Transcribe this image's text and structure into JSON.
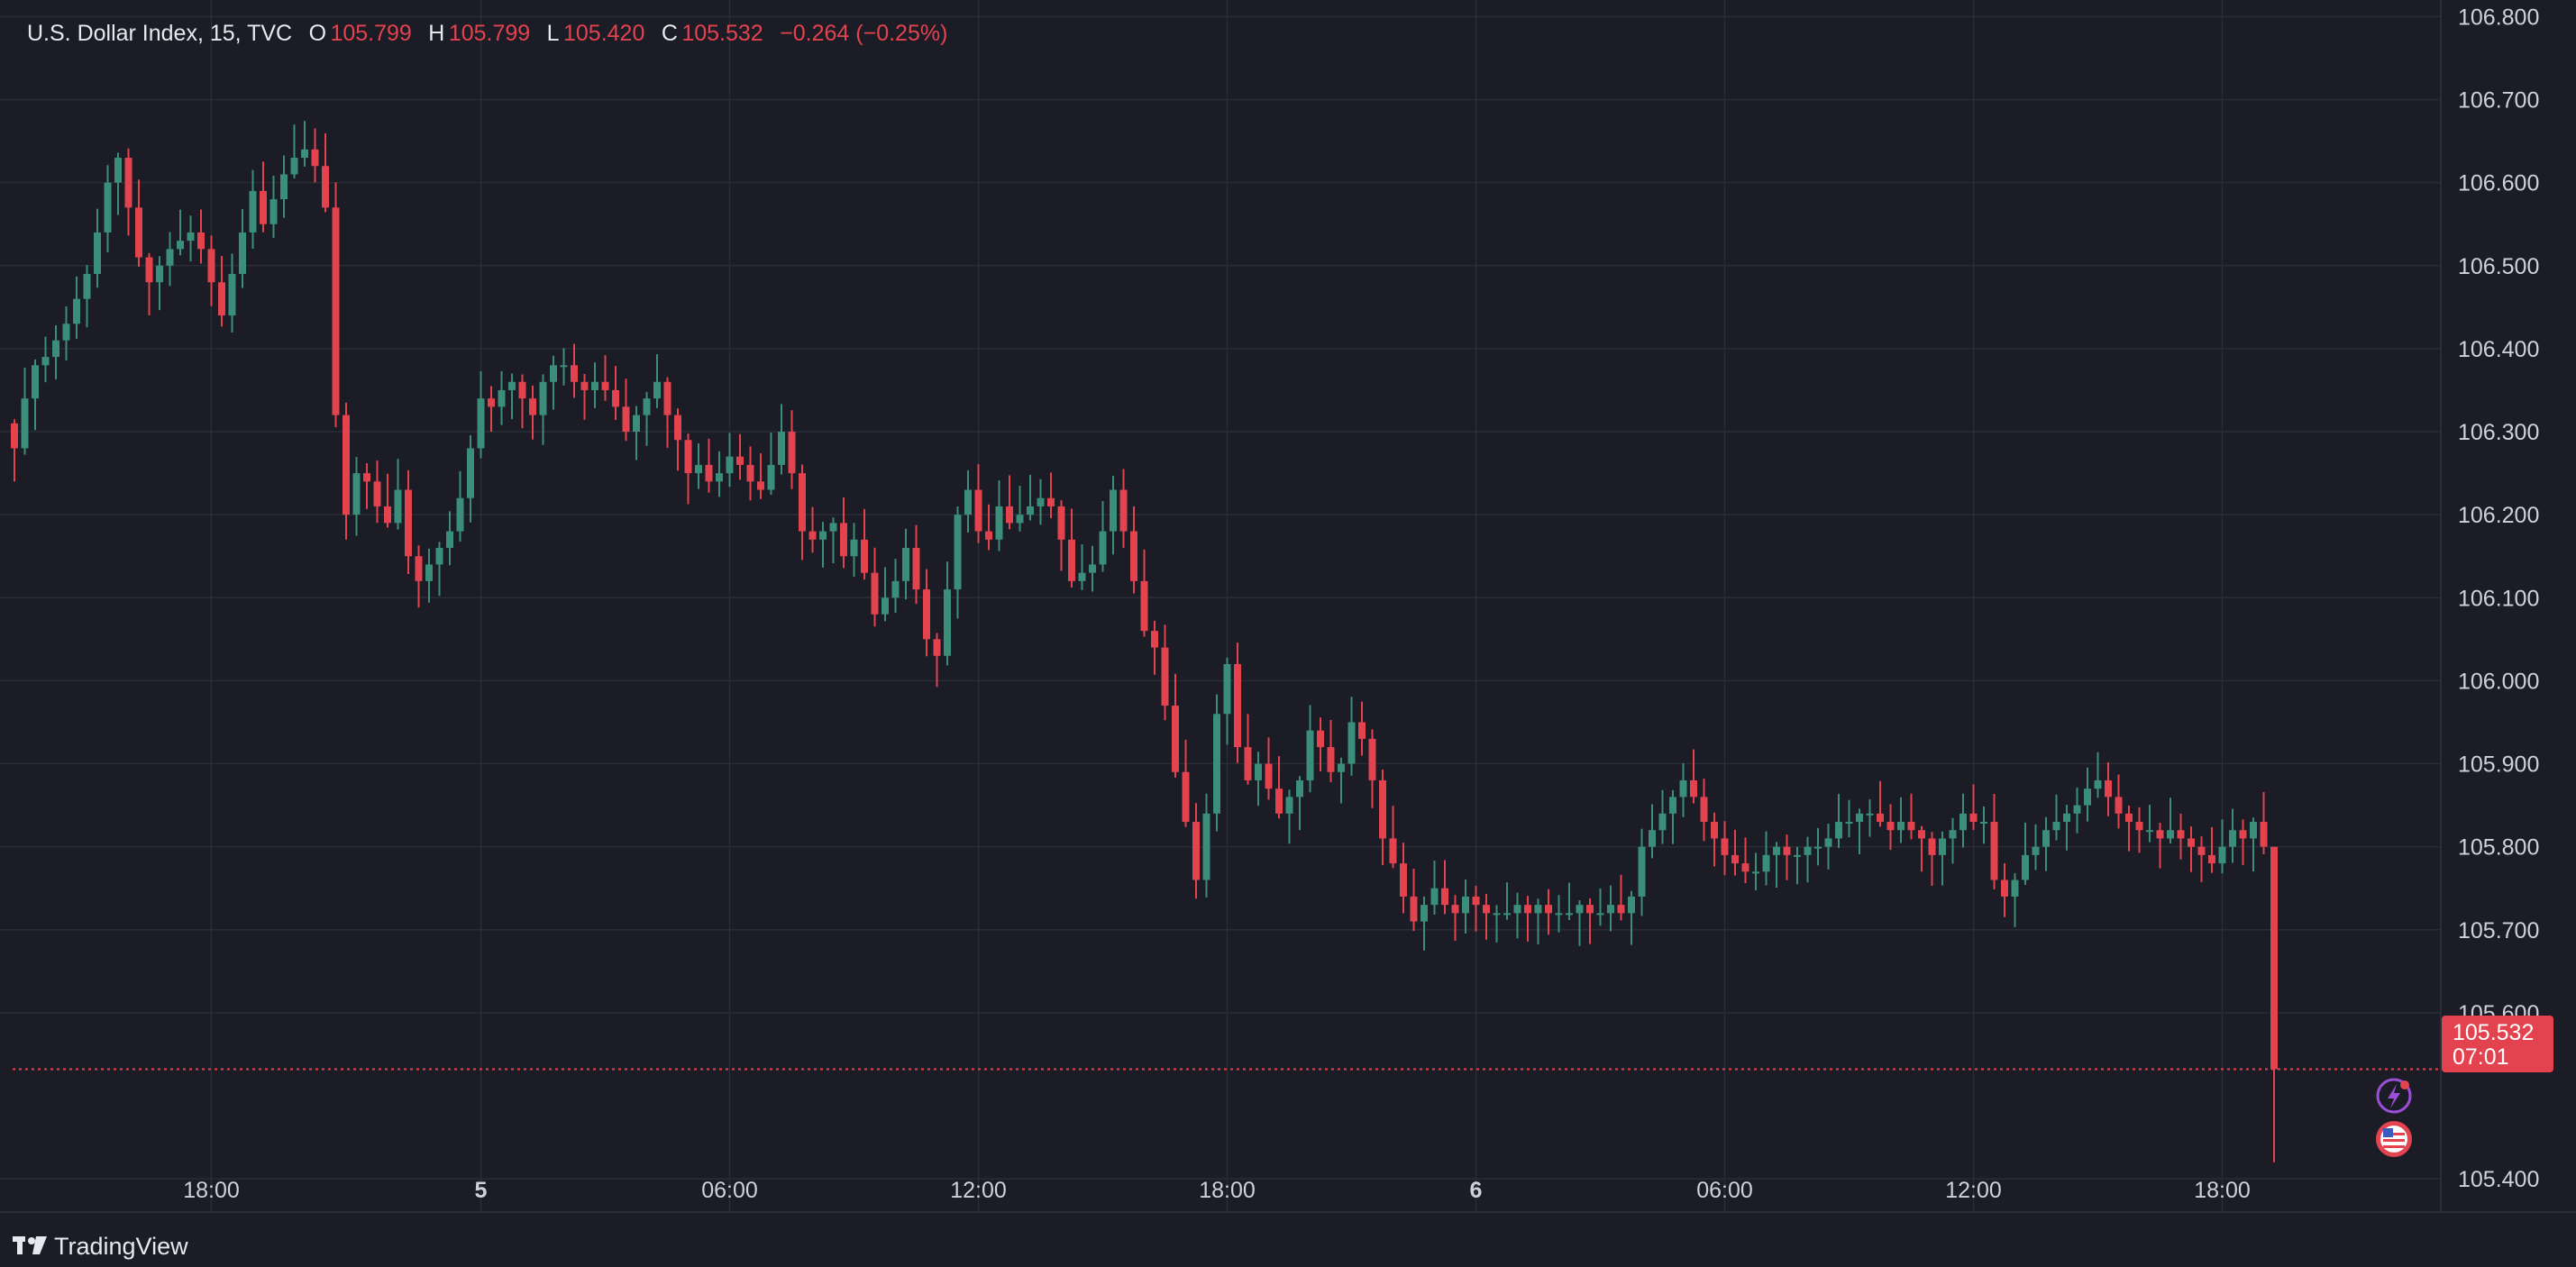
{
  "legend": {
    "symbol": "U.S. Dollar Index, 15, TVC",
    "open_label": "O",
    "open": "105.799",
    "high_label": "H",
    "high": "105.799",
    "low_label": "L",
    "low": "105.420",
    "close_label": "C",
    "close": "105.532",
    "change": "−0.264 (−0.25%)"
  },
  "last_price": {
    "value": "105.532",
    "countdown": "07:01"
  },
  "brand": "TradingView",
  "colors": {
    "background": "#1b1c25",
    "up": "#3b8f7a",
    "down": "#e2434f",
    "grid": "#2a2d36",
    "text": "#cfd2d9"
  },
  "icons": [
    "lightning-event-icon",
    "us-flag-event-icon",
    "tradingview-logo-icon"
  ],
  "chart_data": {
    "type": "candlestick",
    "ylim": [
      105.36,
      106.82
    ],
    "y_ticks": [
      "106.800",
      "106.700",
      "106.600",
      "106.500",
      "106.400",
      "106.300",
      "106.200",
      "106.100",
      "106.000",
      "105.900",
      "105.800",
      "105.700",
      "105.600",
      "105.400"
    ],
    "x_ticks": [
      {
        "label": "18:00",
        "bar": 19,
        "bold": false
      },
      {
        "label": "5",
        "bar": 45,
        "bold": true
      },
      {
        "label": "06:00",
        "bar": 69,
        "bold": false
      },
      {
        "label": "12:00",
        "bar": 93,
        "bold": false
      },
      {
        "label": "18:00",
        "bar": 117,
        "bold": false
      },
      {
        "label": "6",
        "bar": 141,
        "bold": true
      },
      {
        "label": "06:00",
        "bar": 165,
        "bold": false
      },
      {
        "label": "12:00",
        "bar": 189,
        "bold": false
      },
      {
        "label": "18:00",
        "bar": 213,
        "bold": false
      }
    ],
    "closes": [
      106.28,
      106.34,
      106.38,
      106.39,
      106.41,
      106.43,
      106.46,
      106.49,
      106.54,
      106.6,
      106.63,
      106.57,
      106.51,
      106.48,
      106.5,
      106.52,
      106.53,
      106.54,
      106.52,
      106.48,
      106.44,
      106.49,
      106.54,
      106.59,
      106.55,
      106.58,
      106.61,
      106.63,
      106.64,
      106.62,
      106.57,
      106.32,
      106.2,
      106.25,
      106.24,
      106.21,
      106.19,
      106.23,
      106.15,
      106.12,
      106.14,
      106.16,
      106.18,
      106.22,
      106.28,
      106.34,
      106.33,
      106.35,
      106.36,
      106.34,
      106.32,
      106.36,
      106.38,
      106.38,
      106.36,
      106.35,
      106.36,
      106.35,
      106.33,
      106.3,
      106.32,
      106.34,
      106.36,
      106.32,
      106.29,
      106.25,
      106.26,
      106.24,
      106.25,
      106.27,
      106.26,
      106.24,
      106.23,
      106.26,
      106.3,
      106.25,
      106.18,
      106.17,
      106.18,
      106.19,
      106.15,
      106.17,
      106.13,
      106.08,
      106.1,
      106.12,
      106.16,
      106.11,
      106.05,
      106.03,
      106.11,
      106.2,
      106.23,
      106.18,
      106.17,
      106.21,
      106.19,
      106.2,
      106.21,
      106.22,
      106.21,
      106.17,
      106.12,
      106.13,
      106.14,
      106.18,
      106.23,
      106.18,
      106.12,
      106.06,
      106.04,
      105.97,
      105.89,
      105.83,
      105.76,
      105.84,
      105.96,
      106.02,
      105.92,
      105.88,
      105.9,
      105.87,
      105.84,
      105.86,
      105.88,
      105.94,
      105.92,
      105.89,
      105.9,
      105.95,
      105.93,
      105.88,
      105.81,
      105.78,
      105.74,
      105.71,
      105.73,
      105.75,
      105.73,
      105.72,
      105.74,
      105.73,
      105.72,
      105.72,
      105.72,
      105.73,
      105.72,
      105.73,
      105.72,
      105.72,
      105.72,
      105.73,
      105.72,
      105.72,
      105.73,
      105.72,
      105.74,
      105.8,
      105.82,
      105.84,
      105.86,
      105.88,
      105.86,
      105.83,
      105.81,
      105.79,
      105.78,
      105.77,
      105.77,
      105.79,
      105.8,
      105.79,
      105.79,
      105.8,
      105.8,
      105.81,
      105.83,
      105.83,
      105.84,
      105.84,
      105.83,
      105.82,
      105.83,
      105.82,
      105.81,
      105.79,
      105.81,
      105.82,
      105.84,
      105.83,
      105.83,
      105.76,
      105.74,
      105.76,
      105.79,
      105.8,
      105.82,
      105.83,
      105.84,
      105.85,
      105.87,
      105.88,
      105.86,
      105.84,
      105.83,
      105.82,
      105.82,
      105.81,
      105.82,
      105.81,
      105.8,
      105.79,
      105.78,
      105.8,
      105.82,
      105.81,
      105.83,
      105.8,
      105.532
    ]
  }
}
